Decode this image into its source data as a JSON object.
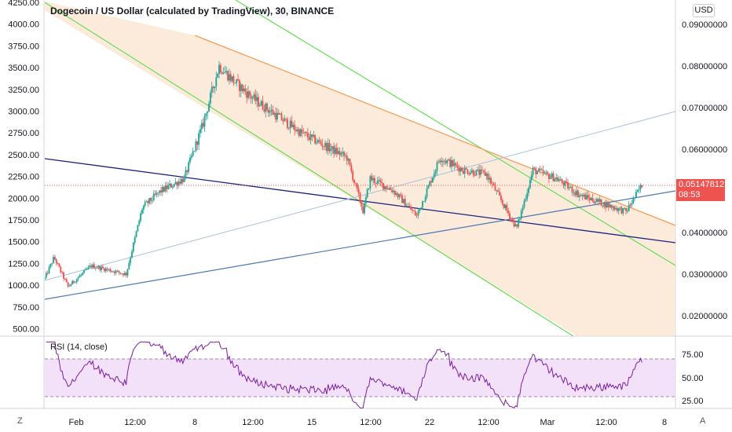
{
  "title": "Dogecoin / US Dollar (calculated by TradingView), 30, BINANCE",
  "currency_button": "USD",
  "current_price": "0.05147812",
  "countdown": "08:53",
  "rsi_label": "RSI (14, close)",
  "scale_buttons": {
    "left": "Z",
    "right": "A"
  },
  "colors": {
    "channel_fill": "#fbe3cf",
    "channel_edge": "#66dd55",
    "orange_line": "#f5a05a",
    "navy_line": "#1a237e",
    "blue_line": "#4a78b5",
    "light_blue_line": "#a7c0de",
    "up_candle": "#26a69a",
    "down_candle": "#ef5350",
    "rsi_line": "#7b1fa2",
    "rsi_band": "#efd9f7",
    "price_line": "#ef5350"
  },
  "chart_data": [
    {
      "type": "candlestick",
      "pair": "DOGE/USD",
      "interval": "30",
      "exchange": "BINANCE",
      "left_axis_ticks": [
        "4250.00",
        "4000.00",
        "3750.00",
        "3500.00",
        "3250.00",
        "3000.00",
        "2750.00",
        "2500.00",
        "2250.00",
        "2000.00",
        "1750.00",
        "1500.00",
        "1250.00",
        "1000.00",
        "750.00",
        "500.00"
      ],
      "right_axis_ticks": [
        "0.09000000",
        "0.08000000",
        "0.07000000",
        "0.06000000",
        "0.04000000",
        "0.03000000",
        "0.02000000"
      ],
      "right_axis_range": [
        0.0141,
        0.0934
      ],
      "time_ticks": [
        "Feb",
        "12:00",
        "8",
        "12:00",
        "15",
        "12:00",
        "22",
        "12:00",
        "Mar",
        "12:00",
        "8"
      ],
      "last_price": 0.05147812,
      "price_path": [
        {
          "day": 0,
          "price": 0.029
        },
        {
          "day": 0.4,
          "price": 0.034
        },
        {
          "day": 1,
          "price": 0.027
        },
        {
          "day": 2,
          "price": 0.032
        },
        {
          "day": 3.5,
          "price": 0.03
        },
        {
          "day": 4.2,
          "price": 0.046
        },
        {
          "day": 5,
          "price": 0.05
        },
        {
          "day": 6,
          "price": 0.053
        },
        {
          "day": 6.8,
          "price": 0.066
        },
        {
          "day": 7.5,
          "price": 0.08
        },
        {
          "day": 8.2,
          "price": 0.076
        },
        {
          "day": 9,
          "price": 0.072
        },
        {
          "day": 10,
          "price": 0.068
        },
        {
          "day": 11,
          "price": 0.064
        },
        {
          "day": 12,
          "price": 0.061
        },
        {
          "day": 13,
          "price": 0.058
        },
        {
          "day": 13.7,
          "price": 0.045
        },
        {
          "day": 14,
          "price": 0.053
        },
        {
          "day": 15,
          "price": 0.05
        },
        {
          "day": 16,
          "price": 0.044
        },
        {
          "day": 17,
          "price": 0.058
        },
        {
          "day": 18,
          "price": 0.055
        },
        {
          "day": 19,
          "price": 0.054
        },
        {
          "day": 19.8,
          "price": 0.046
        },
        {
          "day": 20.3,
          "price": 0.041
        },
        {
          "day": 21,
          "price": 0.055
        },
        {
          "day": 22,
          "price": 0.053
        },
        {
          "day": 23,
          "price": 0.049
        },
        {
          "day": 24,
          "price": 0.047
        },
        {
          "day": 25,
          "price": 0.045
        },
        {
          "day": 25.7,
          "price": 0.0515
        }
      ]
    },
    {
      "type": "line",
      "name": "RSI (14, close)",
      "axis_ticks": [
        "75.00",
        "50.00",
        "25.00"
      ],
      "ylim": [
        15,
        95
      ],
      "upper_band": 70,
      "lower_band": 30
    }
  ]
}
